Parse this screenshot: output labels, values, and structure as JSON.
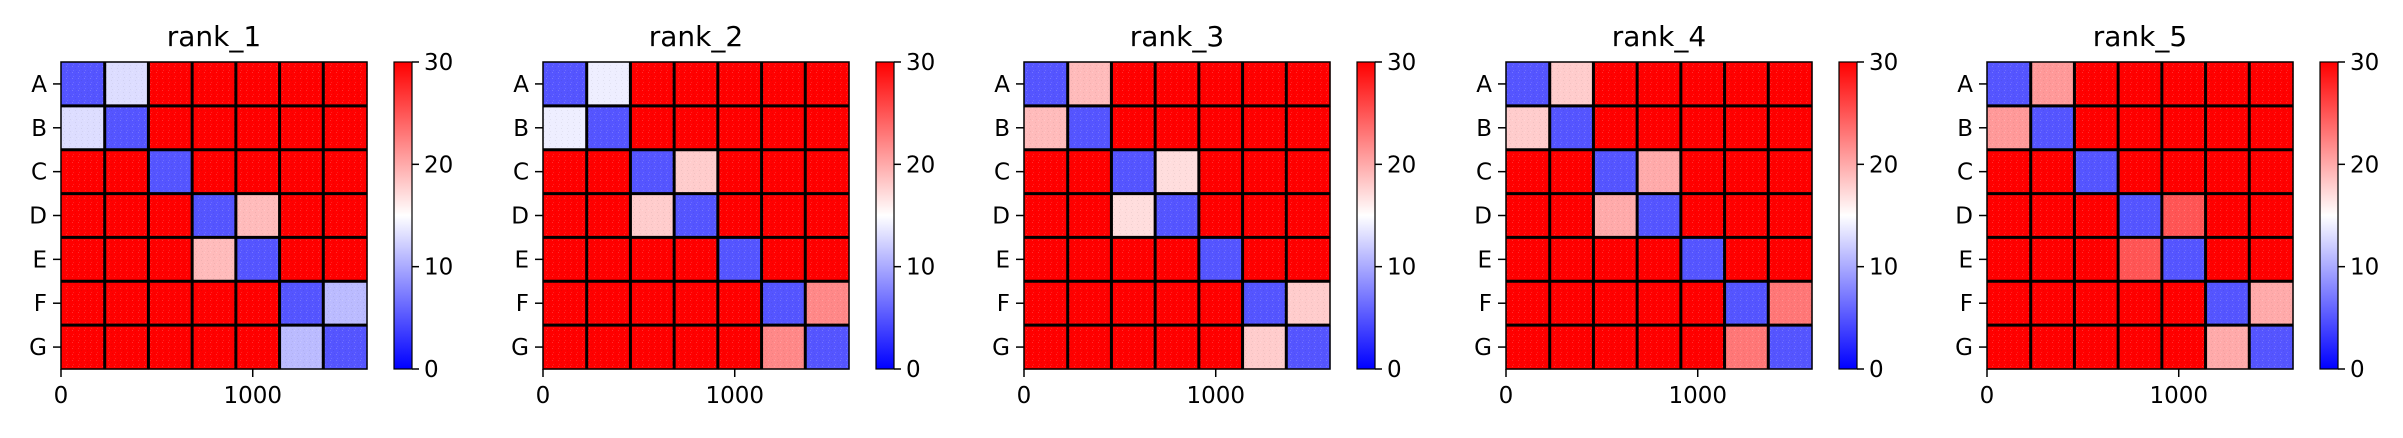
{
  "chart_data": {
    "type": "heatmap",
    "panels": [
      "rank_1",
      "rank_2",
      "rank_3",
      "rank_4",
      "rank_5"
    ],
    "groups": [
      "A",
      "B",
      "C",
      "D",
      "E",
      "F",
      "G"
    ],
    "group_size": 228,
    "xticks": [
      0,
      1000
    ],
    "colorbar": {
      "min": 0,
      "max": 30,
      "ticks": [
        0,
        10,
        20,
        30
      ],
      "colormap": "bwr"
    },
    "colors": {
      "low": "#0000ff",
      "mid": "#ffffff",
      "high": "#ff0000",
      "divider": "#000000"
    },
    "block_values": [
      [
        [
          5,
          13,
          30,
          30,
          30,
          30,
          30
        ],
        [
          13,
          5,
          30,
          30,
          30,
          30,
          30
        ],
        [
          30,
          30,
          5,
          30,
          30,
          30,
          30
        ],
        [
          30,
          30,
          30,
          5,
          19,
          30,
          30
        ],
        [
          30,
          30,
          30,
          19,
          5,
          30,
          30
        ],
        [
          30,
          30,
          30,
          30,
          30,
          5,
          11
        ],
        [
          30,
          30,
          30,
          30,
          30,
          11,
          5
        ]
      ],
      [
        [
          5,
          14,
          30,
          30,
          30,
          30,
          30
        ],
        [
          14,
          5,
          30,
          30,
          30,
          30,
          30
        ],
        [
          30,
          30,
          5,
          18,
          30,
          30,
          30
        ],
        [
          30,
          30,
          18,
          5,
          30,
          30,
          30
        ],
        [
          30,
          30,
          30,
          30,
          5,
          30,
          30
        ],
        [
          30,
          30,
          30,
          30,
          30,
          5,
          22
        ],
        [
          30,
          30,
          30,
          30,
          30,
          22,
          5
        ]
      ],
      [
        [
          5,
          19,
          30,
          30,
          30,
          30,
          30
        ],
        [
          19,
          5,
          30,
          30,
          30,
          30,
          30
        ],
        [
          30,
          30,
          5,
          17,
          30,
          30,
          30
        ],
        [
          30,
          30,
          17,
          5,
          30,
          30,
          30
        ],
        [
          30,
          30,
          30,
          30,
          5,
          30,
          30
        ],
        [
          30,
          30,
          30,
          30,
          30,
          5,
          18
        ],
        [
          30,
          30,
          30,
          30,
          30,
          18,
          5
        ]
      ],
      [
        [
          5,
          18,
          30,
          30,
          30,
          30,
          30
        ],
        [
          18,
          5,
          30,
          30,
          30,
          30,
          30
        ],
        [
          30,
          30,
          5,
          20,
          30,
          30,
          30
        ],
        [
          30,
          30,
          20,
          5,
          30,
          30,
          30
        ],
        [
          30,
          30,
          30,
          30,
          5,
          30,
          30
        ],
        [
          30,
          30,
          30,
          30,
          30,
          5,
          23
        ],
        [
          30,
          30,
          30,
          30,
          30,
          23,
          5
        ]
      ],
      [
        [
          5,
          21,
          30,
          30,
          30,
          30,
          30
        ],
        [
          21,
          5,
          30,
          30,
          30,
          30,
          30
        ],
        [
          30,
          30,
          5,
          30,
          30,
          30,
          30
        ],
        [
          30,
          30,
          30,
          5,
          25,
          30,
          30
        ],
        [
          30,
          30,
          30,
          25,
          5,
          30,
          30
        ],
        [
          30,
          30,
          30,
          30,
          30,
          5,
          20
        ],
        [
          30,
          30,
          30,
          30,
          30,
          20,
          5
        ]
      ]
    ]
  }
}
